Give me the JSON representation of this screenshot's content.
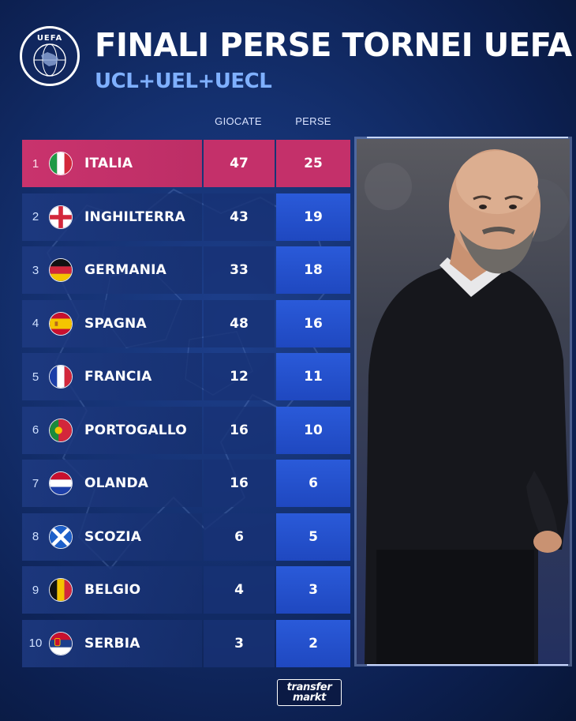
{
  "header": {
    "logo_text": "UEFA",
    "title": "FINALI PERSE TORNEI UEFA",
    "subtitle": "UCL+UEL+UECL"
  },
  "columns": {
    "played": "GIOCATE",
    "lost": "PERSE"
  },
  "rows": [
    {
      "rank": "1",
      "country": "ITALIA",
      "played": "47",
      "lost": "25",
      "flag": "italy-flag-icon"
    },
    {
      "rank": "2",
      "country": "INGHILTERRA",
      "played": "43",
      "lost": "19",
      "flag": "england-flag-icon"
    },
    {
      "rank": "3",
      "country": "GERMANIA",
      "played": "33",
      "lost": "18",
      "flag": "germany-flag-icon"
    },
    {
      "rank": "4",
      "country": "SPAGNA",
      "played": "48",
      "lost": "16",
      "flag": "spain-flag-icon"
    },
    {
      "rank": "5",
      "country": "FRANCIA",
      "played": "12",
      "lost": "11",
      "flag": "france-flag-icon"
    },
    {
      "rank": "6",
      "country": "PORTOGALLO",
      "played": "16",
      "lost": "10",
      "flag": "portugal-flag-icon"
    },
    {
      "rank": "7",
      "country": "OLANDA",
      "played": "16",
      "lost": "6",
      "flag": "netherlands-flag-icon"
    },
    {
      "rank": "8",
      "country": "SCOZIA",
      "played": "6",
      "lost": "5",
      "flag": "scotland-flag-icon"
    },
    {
      "rank": "9",
      "country": "BELGIO",
      "played": "4",
      "lost": "3",
      "flag": "belgium-flag-icon"
    },
    {
      "rank": "10",
      "country": "SERBIA",
      "played": "3",
      "lost": "2",
      "flag": "serbia-flag-icon"
    }
  ],
  "highlight_color": "#c4306a",
  "lost_column_color": "#2a5ad9",
  "accent_subtitle_color": "#7fb0ff",
  "footer": {
    "brand_line1": "transfer",
    "brand_line2": "markt"
  }
}
